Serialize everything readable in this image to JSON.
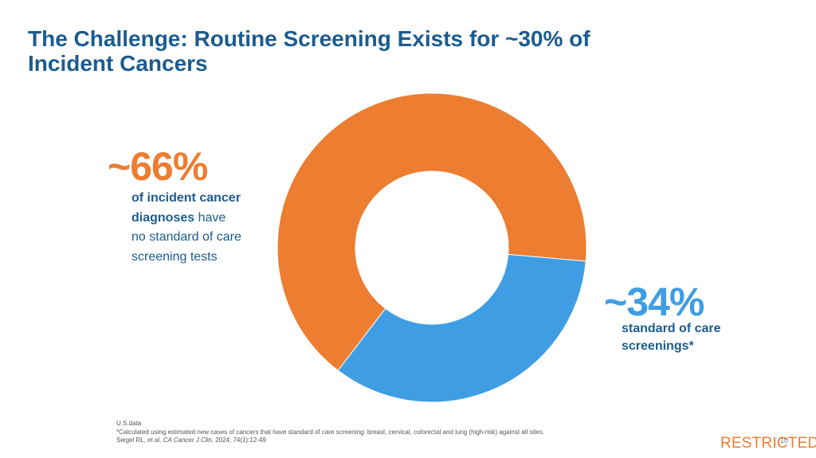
{
  "title": {
    "line1": "The Challenge: Routine Screening Exists for ~30% of",
    "line2": "Incident Cancers"
  },
  "chart_data": {
    "type": "pie",
    "donut": true,
    "slices": [
      {
        "value": 66,
        "label": "~66%",
        "description_bold_1": "of incident cancer",
        "description_bold_2": "diagnoses",
        "description_rest_2": " have",
        "description_3": "no standard of care",
        "description_4": "screening tests",
        "color": "#ed7d31"
      },
      {
        "value": 34,
        "label": "~34%",
        "description_1": "standard of care",
        "description_2": "screenings*",
        "color": "#3f9ee3"
      }
    ]
  },
  "footnotes": {
    "line1": "U.S.data",
    "line2": "*Calculated using estimated new cases of cancers that have standard of care screening: breast, cervical, colorectal and lung (high-risk) against all sites.",
    "line3_prefix": "Siegel RL, et al. ",
    "line3_journal": "CA Cancer J Clin.",
    "line3_suffix": " 2024; 74(1):12-49"
  },
  "classification": "RESTRICTED",
  "page_number": "10"
}
